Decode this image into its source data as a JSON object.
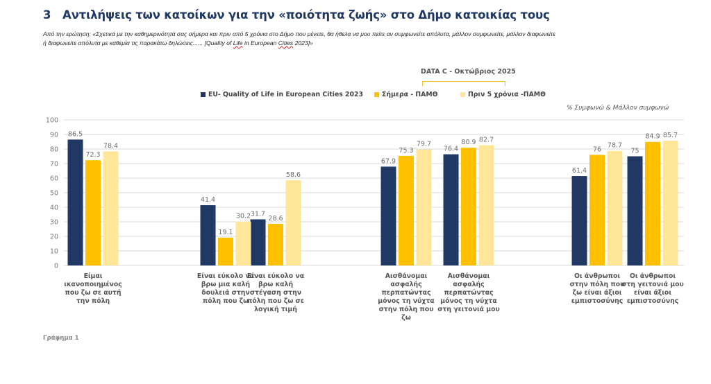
{
  "header": {
    "section_number": "3",
    "title": "Αντιλήψεις των κατοίκων για την  «ποιότητα ζωής» στο Δήμο κατοικίας τους",
    "question_line1": "Από την ερώτηση: «Σχετικά  με την καθημερινότητά σας σήμερα και πριν από 5 χρόνια στο Δήμο που μένετε, θα ήθελα να μου πείτε  αν συμφωνείτε απόλυτα, μάλλον συμφωνείτε, μάλλον διαφωνείτε",
    "question_line2_a": "ή διαφωνείτε απόλυτα με καθεμία  τις παρακάτω δηλώσεις...... [Quality of ",
    "question_line2_u1": "Life",
    "question_line2_b": " in European ",
    "question_line2_u2": "Cities",
    "question_line2_c": " 2023]»"
  },
  "legend_group_label": "DATA C - Οκτώβριος 2025",
  "unit_note": "% Συμφωνώ & Μάλλον συμφωνώ",
  "caption": "Γράφημα 1",
  "colors": {
    "eu": "#1f3864",
    "today": "#ffc000",
    "five_years_ago": "#ffe699",
    "grid": "#d9d9d9",
    "title": "#1f3864"
  },
  "chart_data": {
    "type": "bar",
    "title": "",
    "xlabel": "",
    "ylabel": "% Συμφωνώ & Μάλλον συμφωνώ",
    "ylim": [
      0,
      100
    ],
    "yticks": [
      0,
      10,
      20,
      30,
      40,
      50,
      60,
      70,
      80,
      90,
      100
    ],
    "grid": true,
    "legend_position": "top",
    "categories": [
      [
        "Είμαι",
        "ικανοποιημένος",
        "που ζω σε αυτή",
        "την πόλη"
      ],
      [
        "Είναι εύκολο να",
        "βρω μια  καλή",
        "δουλειά στην",
        "πόλη που ζω"
      ],
      [
        "Είναι εύκολο να",
        "βρω καλή",
        "στέγαση  στην",
        "πόλη που ζω σε",
        "λογική τιμή"
      ],
      [
        "Αισθάνομαι",
        "ασφαλής",
        "περπατώντας",
        "μόνος τη νύχτα",
        "στην πόλη που",
        "ζω"
      ],
      [
        "Αισθάνομαι",
        "ασφαλής",
        "περπατώντας",
        "μόνος τη νύχτα",
        "στη γειτονιά μου"
      ],
      [
        "Οι άνθρωποι",
        "στην πόλη που",
        "ζω  είναι άξιοι",
        "εμπιστοσύνης"
      ],
      [
        "Οι άνθρωποι",
        "στη γειτονιά μου",
        "είναι άξιοι",
        "εμπιστοσύνης"
      ]
    ],
    "series": [
      {
        "name": "EU- Quality of Life in European Cities 2023",
        "color": "#1f3864",
        "values": [
          86.5,
          41.4,
          31.7,
          67.9,
          76.4,
          61.4,
          75
        ]
      },
      {
        "name": "Σήμερα - ΠΑΜΘ",
        "color": "#ffc000",
        "values": [
          72.3,
          19.1,
          28.6,
          75.3,
          80.9,
          76,
          84.9
        ]
      },
      {
        "name": "Πριν 5 χρόνια -ΠΑΜΘ",
        "color": "#ffe699",
        "values": [
          78.4,
          30.2,
          58.6,
          79.7,
          82.7,
          78.7,
          85.7
        ]
      }
    ],
    "value_labels": [
      [
        "86.5",
        "41.4",
        "31.7",
        "67.9",
        "76.4",
        "61.4",
        "75"
      ],
      [
        "72.3",
        "19.1",
        "28.6",
        "75.3",
        "80.9",
        "76",
        "84.9"
      ],
      [
        "78.4",
        "30.2",
        "58.6",
        "79.7",
        "82.7",
        "78.7",
        "85.7"
      ]
    ]
  }
}
